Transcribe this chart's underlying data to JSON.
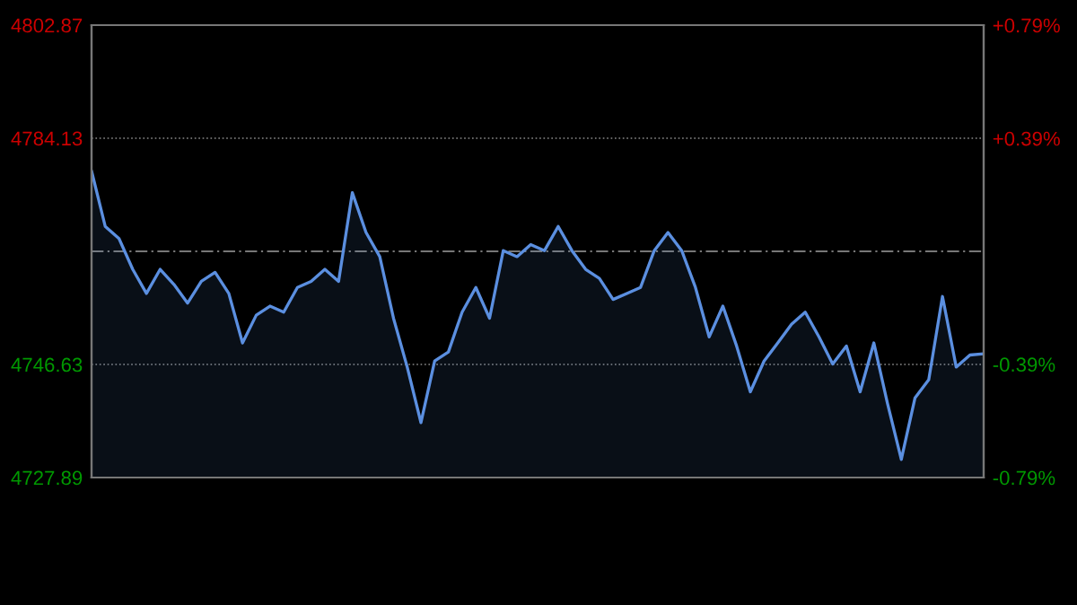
{
  "chart_data": {
    "type": "area",
    "categories": [
      null,
      null,
      null,
      null,
      null,
      null,
      null,
      null,
      null,
      null,
      null,
      null,
      null,
      null,
      null,
      null,
      null,
      null,
      null,
      null,
      null,
      null,
      null,
      null,
      null,
      null,
      null,
      null,
      null,
      null,
      null,
      null,
      null,
      null,
      null,
      null,
      null,
      null,
      null,
      null,
      null,
      null,
      null,
      null,
      null,
      null,
      null,
      null,
      null,
      null,
      null,
      null,
      null,
      null,
      null,
      null,
      null,
      null,
      null,
      null,
      null,
      null,
      null,
      null,
      null,
      null
    ],
    "series": [
      {
        "color": "#5b8fe0",
        "values": [
          4778.7,
          4769.5,
          4767.5,
          4762.4,
          4758.4,
          4762.4,
          4759.9,
          4756.8,
          4760.4,
          4761.9,
          4758.4,
          4750.2,
          4754.8,
          4756.3,
          4755.3,
          4759.4,
          4760.4,
          4762.4,
          4760.4,
          4775.1,
          4768.5,
          4764.5,
          4754.3,
          4746.2,
          4737.0,
          4747.2,
          4748.7,
          4755.3,
          4759.4,
          4754.3,
          4765.5,
          4764.5,
          4766.5,
          4765.5,
          4769.5,
          4765.5,
          4762.4,
          4760.9,
          4757.4,
          4758.4,
          4759.4,
          4765.5,
          4768.5,
          4765.5,
          4759.4,
          4751.2,
          4756.3,
          4749.7,
          4742.1,
          4747.2,
          4750.2,
          4753.3,
          4755.3,
          4751.2,
          4746.7,
          4749.7,
          4742.1,
          4750.2,
          4740.1,
          4730.9,
          4741.1,
          4744.1,
          4757.9,
          4746.2,
          4748.2,
          4748.4
        ]
      }
    ],
    "ylim": [
      4727.89,
      4802.87
    ],
    "yticks": [
      4727.89,
      4746.63,
      4784.13,
      4802.87
    ],
    "y2lim": [
      -0.787,
      0.787
    ],
    "y2ticks": [
      {
        "value": -0.787,
        "label": "-0.79%"
      },
      {
        "value": -0.393,
        "label": "-0.39%"
      },
      {
        "value": 0.393,
        "label": "+0.39%"
      },
      {
        "value": 0.787,
        "label": "+0.79%"
      }
    ],
    "ref_lines": [
      {
        "axis": "y",
        "value": 4765.38,
        "line_style": "dashed",
        "color": "#777777"
      }
    ],
    "grid": "y",
    "legend": false
  }
}
